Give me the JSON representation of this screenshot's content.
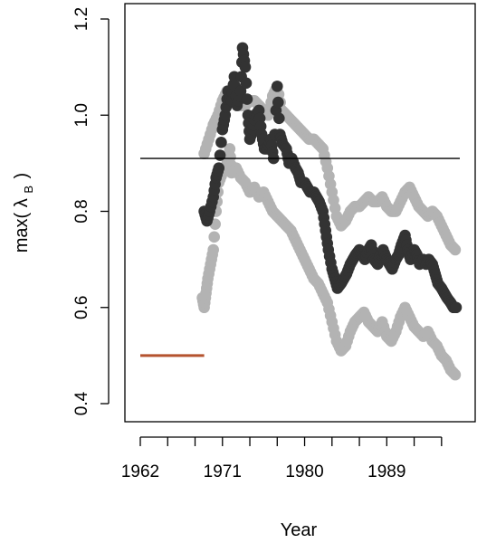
{
  "chart_data": {
    "type": "scatter",
    "xlabel": "Year",
    "ylabel_prefix": "max(",
    "ylabel_symbol": "λ",
    "ylabel_subscript": "B",
    "ylabel_suffix": ")",
    "xlim": [
      1962,
      1997
    ],
    "ylim": [
      0.4,
      1.2
    ],
    "x_ticks": [
      1962,
      1965,
      1968,
      1971,
      1974,
      1977,
      1980,
      1983,
      1986,
      1989,
      1992,
      1995
    ],
    "x_tick_labels": [
      {
        "value": 1962,
        "label": "1962"
      },
      {
        "value": 1971,
        "label": "1971"
      },
      {
        "value": 1980,
        "label": "1980"
      },
      {
        "value": 1989,
        "label": "1989"
      }
    ],
    "y_ticks": [
      0.4,
      0.6,
      0.8,
      1.0,
      1.2
    ],
    "y_tick_labels": [
      "0.4",
      "0.6",
      "0.8",
      "1.0",
      "1.2"
    ],
    "grid": false,
    "reference_line": {
      "y": 0.91,
      "x_range": [
        1962,
        1997
      ],
      "color": "#000000"
    },
    "baseline_segment": {
      "y": 0.5,
      "x_range": [
        1962,
        1969
      ],
      "color": "#b5532f"
    },
    "colors": {
      "estimate": "#333333",
      "bounds": "#b3b3b3"
    },
    "series": [
      {
        "role": "upper-bound",
        "color": "#b3b3b3",
        "points": [
          [
            1969,
            0.92
          ],
          [
            1969.5,
            0.95
          ],
          [
            1970,
            0.98
          ],
          [
            1970.5,
            1.0
          ],
          [
            1971,
            1.03
          ],
          [
            1971.5,
            1.05
          ],
          [
            1972,
            1.04
          ],
          [
            1972.5,
            1.03
          ],
          [
            1973,
            1.02
          ],
          [
            1973.5,
            1.02
          ],
          [
            1974,
            1.03
          ],
          [
            1974.5,
            1.03
          ],
          [
            1975,
            1.02
          ],
          [
            1975.5,
            1.01
          ],
          [
            1976,
            1.0
          ],
          [
            1976.5,
            1.04
          ],
          [
            1977,
            1.06
          ],
          [
            1977.5,
            1.01
          ],
          [
            1978,
            1.0
          ],
          [
            1978.5,
            0.99
          ],
          [
            1979,
            0.98
          ],
          [
            1979.5,
            0.97
          ],
          [
            1980,
            0.96
          ],
          [
            1980.5,
            0.95
          ],
          [
            1981,
            0.95
          ],
          [
            1981.5,
            0.94
          ],
          [
            1982,
            0.93
          ],
          [
            1982.5,
            0.89
          ],
          [
            1983,
            0.84
          ],
          [
            1983.5,
            0.79
          ],
          [
            1984,
            0.77
          ],
          [
            1984.5,
            0.78
          ],
          [
            1985,
            0.8
          ],
          [
            1985.5,
            0.81
          ],
          [
            1986,
            0.81
          ],
          [
            1986.5,
            0.82
          ],
          [
            1987,
            0.83
          ],
          [
            1987.5,
            0.82
          ],
          [
            1988,
            0.82
          ],
          [
            1988.5,
            0.83
          ],
          [
            1989,
            0.81
          ],
          [
            1989.5,
            0.8
          ],
          [
            1990,
            0.8
          ],
          [
            1990.5,
            0.82
          ],
          [
            1991,
            0.84
          ],
          [
            1991.5,
            0.85
          ],
          [
            1992,
            0.83
          ],
          [
            1992.5,
            0.81
          ],
          [
            1993,
            0.8
          ],
          [
            1993.5,
            0.79
          ],
          [
            1994,
            0.8
          ],
          [
            1994.5,
            0.79
          ],
          [
            1995,
            0.77
          ],
          [
            1995.5,
            0.75
          ],
          [
            1996,
            0.73
          ],
          [
            1996.5,
            0.72
          ]
        ]
      },
      {
        "role": "lower-bound",
        "color": "#b3b3b3",
        "points": [
          [
            1968.8,
            0.62
          ],
          [
            1969,
            0.6
          ],
          [
            1969.2,
            0.63
          ],
          [
            1969.4,
            0.66
          ],
          [
            1969.7,
            0.69
          ],
          [
            1970,
            0.72
          ],
          [
            1970.3,
            0.8
          ],
          [
            1970.6,
            0.86
          ],
          [
            1971,
            0.88
          ],
          [
            1971.5,
            0.9
          ],
          [
            1971.8,
            0.93
          ],
          [
            1972,
            0.88
          ],
          [
            1972.5,
            0.89
          ],
          [
            1973,
            0.87
          ],
          [
            1973.5,
            0.86
          ],
          [
            1974,
            0.84
          ],
          [
            1974.5,
            0.85
          ],
          [
            1975,
            0.83
          ],
          [
            1975.5,
            0.84
          ],
          [
            1976,
            0.82
          ],
          [
            1976.5,
            0.8
          ],
          [
            1977,
            0.79
          ],
          [
            1977.5,
            0.78
          ],
          [
            1978,
            0.77
          ],
          [
            1978.5,
            0.76
          ],
          [
            1979,
            0.74
          ],
          [
            1979.5,
            0.72
          ],
          [
            1980,
            0.7
          ],
          [
            1980.5,
            0.68
          ],
          [
            1981,
            0.66
          ],
          [
            1981.5,
            0.65
          ],
          [
            1982,
            0.63
          ],
          [
            1982.5,
            0.61
          ],
          [
            1983,
            0.57
          ],
          [
            1983.5,
            0.53
          ],
          [
            1984,
            0.51
          ],
          [
            1984.5,
            0.52
          ],
          [
            1985,
            0.55
          ],
          [
            1985.5,
            0.57
          ],
          [
            1986,
            0.58
          ],
          [
            1986.5,
            0.59
          ],
          [
            1987,
            0.57
          ],
          [
            1987.5,
            0.56
          ],
          [
            1988,
            0.55
          ],
          [
            1988.5,
            0.57
          ],
          [
            1989,
            0.54
          ],
          [
            1989.5,
            0.53
          ],
          [
            1990,
            0.55
          ],
          [
            1990.5,
            0.58
          ],
          [
            1991,
            0.6
          ],
          [
            1991.5,
            0.58
          ],
          [
            1992,
            0.56
          ],
          [
            1992.5,
            0.55
          ],
          [
            1993,
            0.54
          ],
          [
            1993.5,
            0.55
          ],
          [
            1994,
            0.53
          ],
          [
            1994.5,
            0.52
          ],
          [
            1995,
            0.5
          ],
          [
            1995.5,
            0.49
          ],
          [
            1996,
            0.47
          ],
          [
            1996.5,
            0.46
          ]
        ]
      },
      {
        "role": "estimate",
        "color": "#333333",
        "points": [
          [
            1969,
            0.8
          ],
          [
            1969.3,
            0.78
          ],
          [
            1969.6,
            0.8
          ],
          [
            1970,
            0.83
          ],
          [
            1970.3,
            0.87
          ],
          [
            1970.6,
            0.89
          ],
          [
            1971,
            0.97
          ],
          [
            1971.3,
            1.0
          ],
          [
            1971.6,
            1.05
          ],
          [
            1972,
            1.03
          ],
          [
            1972.3,
            1.08
          ],
          [
            1972.6,
            1.02
          ],
          [
            1973,
            1.05
          ],
          [
            1973.2,
            1.14
          ],
          [
            1973.5,
            1.1
          ],
          [
            1973.8,
            1.0
          ],
          [
            1974,
            0.95
          ],
          [
            1974.3,
            0.97
          ],
          [
            1974.6,
            1.0
          ],
          [
            1975,
            1.01
          ],
          [
            1975.3,
            0.96
          ],
          [
            1975.6,
            0.93
          ],
          [
            1976,
            0.93
          ],
          [
            1976.3,
            0.95
          ],
          [
            1976.6,
            0.91
          ],
          [
            1977,
            1.06
          ],
          [
            1977.3,
            0.96
          ],
          [
            1977.6,
            0.94
          ],
          [
            1978,
            0.93
          ],
          [
            1978.3,
            0.9
          ],
          [
            1978.6,
            0.91
          ],
          [
            1979,
            0.89
          ],
          [
            1979.3,
            0.88
          ],
          [
            1979.6,
            0.86
          ],
          [
            1980,
            0.86
          ],
          [
            1980.3,
            0.85
          ],
          [
            1980.6,
            0.84
          ],
          [
            1981,
            0.84
          ],
          [
            1981.3,
            0.83
          ],
          [
            1981.6,
            0.82
          ],
          [
            1982,
            0.8
          ],
          [
            1982.3,
            0.76
          ],
          [
            1982.6,
            0.72
          ],
          [
            1983,
            0.68
          ],
          [
            1983.3,
            0.66
          ],
          [
            1983.6,
            0.64
          ],
          [
            1984,
            0.65
          ],
          [
            1984.3,
            0.66
          ],
          [
            1984.6,
            0.67
          ],
          [
            1985,
            0.69
          ],
          [
            1985.3,
            0.7
          ],
          [
            1985.6,
            0.71
          ],
          [
            1986,
            0.72
          ],
          [
            1986.3,
            0.71
          ],
          [
            1986.6,
            0.7
          ],
          [
            1987,
            0.72
          ],
          [
            1987.3,
            0.73
          ],
          [
            1987.6,
            0.7
          ],
          [
            1988,
            0.69
          ],
          [
            1988.3,
            0.71
          ],
          [
            1988.6,
            0.72
          ],
          [
            1989,
            0.7
          ],
          [
            1989.3,
            0.69
          ],
          [
            1989.6,
            0.68
          ],
          [
            1990,
            0.7
          ],
          [
            1990.3,
            0.71
          ],
          [
            1990.6,
            0.73
          ],
          [
            1991,
            0.75
          ],
          [
            1991.3,
            0.72
          ],
          [
            1991.6,
            0.7
          ],
          [
            1992,
            0.72
          ],
          [
            1992.3,
            0.71
          ],
          [
            1992.6,
            0.69
          ],
          [
            1993,
            0.7
          ],
          [
            1993.3,
            0.69
          ],
          [
            1993.6,
            0.7
          ],
          [
            1994,
            0.69
          ],
          [
            1994.3,
            0.67
          ],
          [
            1994.6,
            0.65
          ],
          [
            1995,
            0.64
          ],
          [
            1995.3,
            0.63
          ],
          [
            1995.6,
            0.62
          ],
          [
            1996,
            0.61
          ],
          [
            1996.3,
            0.6
          ],
          [
            1996.6,
            0.6
          ]
        ]
      }
    ]
  }
}
